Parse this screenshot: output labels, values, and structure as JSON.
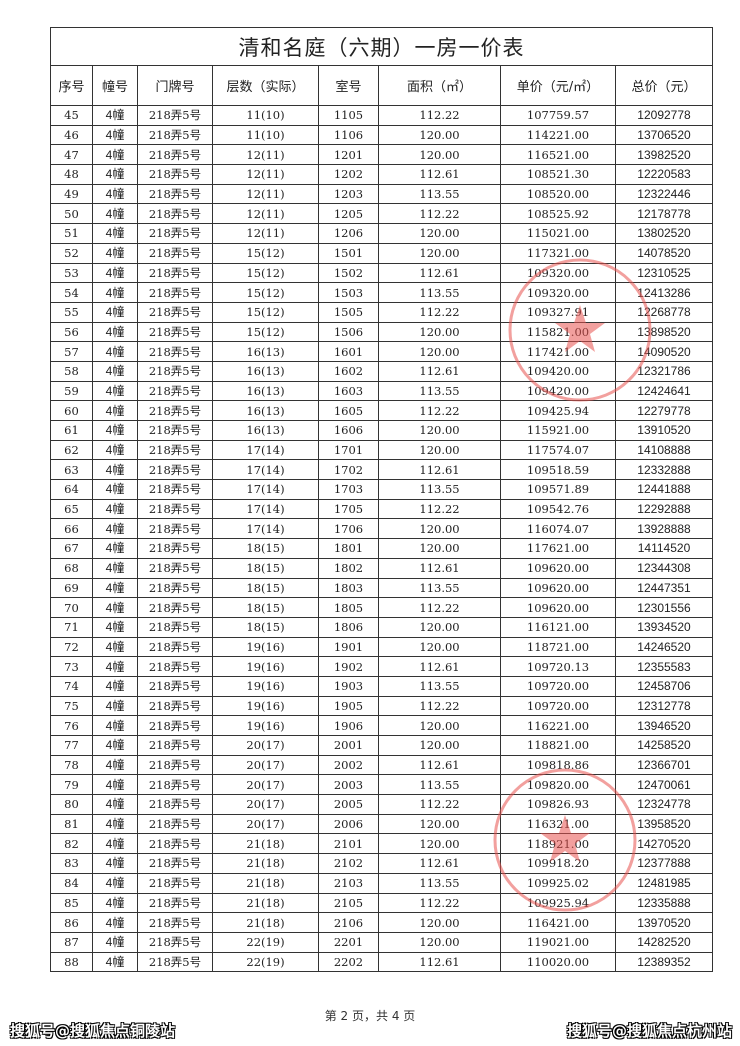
{
  "title": "清和名庭（六期）一房一价表",
  "headers": [
    "序号",
    "幢号",
    "门牌号",
    "层数（实际）",
    "室号",
    "面积（㎡）",
    "单价（元/㎡）",
    "总价（元）"
  ],
  "rows": [
    [
      "45",
      "4幢",
      "218弄5号",
      "11(10)",
      "1105",
      "112.22",
      "107759.57",
      "12092778"
    ],
    [
      "46",
      "4幢",
      "218弄5号",
      "11(10)",
      "1106",
      "120.00",
      "114221.00",
      "13706520"
    ],
    [
      "47",
      "4幢",
      "218弄5号",
      "12(11)",
      "1201",
      "120.00",
      "116521.00",
      "13982520"
    ],
    [
      "48",
      "4幢",
      "218弄5号",
      "12(11)",
      "1202",
      "112.61",
      "108521.30",
      "12220583"
    ],
    [
      "49",
      "4幢",
      "218弄5号",
      "12(11)",
      "1203",
      "113.55",
      "108520.00",
      "12322446"
    ],
    [
      "50",
      "4幢",
      "218弄5号",
      "12(11)",
      "1205",
      "112.22",
      "108525.92",
      "12178778"
    ],
    [
      "51",
      "4幢",
      "218弄5号",
      "12(11)",
      "1206",
      "120.00",
      "115021.00",
      "13802520"
    ],
    [
      "52",
      "4幢",
      "218弄5号",
      "15(12)",
      "1501",
      "120.00",
      "117321.00",
      "14078520"
    ],
    [
      "53",
      "4幢",
      "218弄5号",
      "15(12)",
      "1502",
      "112.61",
      "109320.00",
      "12310525"
    ],
    [
      "54",
      "4幢",
      "218弄5号",
      "15(12)",
      "1503",
      "113.55",
      "109320.00",
      "12413286"
    ],
    [
      "55",
      "4幢",
      "218弄5号",
      "15(12)",
      "1505",
      "112.22",
      "109327.91",
      "12268778"
    ],
    [
      "56",
      "4幢",
      "218弄5号",
      "15(12)",
      "1506",
      "120.00",
      "115821.00",
      "13898520"
    ],
    [
      "57",
      "4幢",
      "218弄5号",
      "16(13)",
      "1601",
      "120.00",
      "117421.00",
      "14090520"
    ],
    [
      "58",
      "4幢",
      "218弄5号",
      "16(13)",
      "1602",
      "112.61",
      "109420.00",
      "12321786"
    ],
    [
      "59",
      "4幢",
      "218弄5号",
      "16(13)",
      "1603",
      "113.55",
      "109420.00",
      "12424641"
    ],
    [
      "60",
      "4幢",
      "218弄5号",
      "16(13)",
      "1605",
      "112.22",
      "109425.94",
      "12279778"
    ],
    [
      "61",
      "4幢",
      "218弄5号",
      "16(13)",
      "1606",
      "120.00",
      "115921.00",
      "13910520"
    ],
    [
      "62",
      "4幢",
      "218弄5号",
      "17(14)",
      "1701",
      "120.00",
      "117574.07",
      "14108888"
    ],
    [
      "63",
      "4幢",
      "218弄5号",
      "17(14)",
      "1702",
      "112.61",
      "109518.59",
      "12332888"
    ],
    [
      "64",
      "4幢",
      "218弄5号",
      "17(14)",
      "1703",
      "113.55",
      "109571.89",
      "12441888"
    ],
    [
      "65",
      "4幢",
      "218弄5号",
      "17(14)",
      "1705",
      "112.22",
      "109542.76",
      "12292888"
    ],
    [
      "66",
      "4幢",
      "218弄5号",
      "17(14)",
      "1706",
      "120.00",
      "116074.07",
      "13928888"
    ],
    [
      "67",
      "4幢",
      "218弄5号",
      "18(15)",
      "1801",
      "120.00",
      "117621.00",
      "14114520"
    ],
    [
      "68",
      "4幢",
      "218弄5号",
      "18(15)",
      "1802",
      "112.61",
      "109620.00",
      "12344308"
    ],
    [
      "69",
      "4幢",
      "218弄5号",
      "18(15)",
      "1803",
      "113.55",
      "109620.00",
      "12447351"
    ],
    [
      "70",
      "4幢",
      "218弄5号",
      "18(15)",
      "1805",
      "112.22",
      "109620.00",
      "12301556"
    ],
    [
      "71",
      "4幢",
      "218弄5号",
      "18(15)",
      "1806",
      "120.00",
      "116121.00",
      "13934520"
    ],
    [
      "72",
      "4幢",
      "218弄5号",
      "19(16)",
      "1901",
      "120.00",
      "118721.00",
      "14246520"
    ],
    [
      "73",
      "4幢",
      "218弄5号",
      "19(16)",
      "1902",
      "112.61",
      "109720.13",
      "12355583"
    ],
    [
      "74",
      "4幢",
      "218弄5号",
      "19(16)",
      "1903",
      "113.55",
      "109720.00",
      "12458706"
    ],
    [
      "75",
      "4幢",
      "218弄5号",
      "19(16)",
      "1905",
      "112.22",
      "109720.00",
      "12312778"
    ],
    [
      "76",
      "4幢",
      "218弄5号",
      "19(16)",
      "1906",
      "120.00",
      "116221.00",
      "13946520"
    ],
    [
      "77",
      "4幢",
      "218弄5号",
      "20(17)",
      "2001",
      "120.00",
      "118821.00",
      "14258520"
    ],
    [
      "78",
      "4幢",
      "218弄5号",
      "20(17)",
      "2002",
      "112.61",
      "109818.86",
      "12366701"
    ],
    [
      "79",
      "4幢",
      "218弄5号",
      "20(17)",
      "2003",
      "113.55",
      "109820.00",
      "12470061"
    ],
    [
      "80",
      "4幢",
      "218弄5号",
      "20(17)",
      "2005",
      "112.22",
      "109826.93",
      "12324778"
    ],
    [
      "81",
      "4幢",
      "218弄5号",
      "20(17)",
      "2006",
      "120.00",
      "116321.00",
      "13958520"
    ],
    [
      "82",
      "4幢",
      "218弄5号",
      "21(18)",
      "2101",
      "120.00",
      "118921.00",
      "14270520"
    ],
    [
      "83",
      "4幢",
      "218弄5号",
      "21(18)",
      "2102",
      "112.61",
      "109918.20",
      "12377888"
    ],
    [
      "84",
      "4幢",
      "218弄5号",
      "21(18)",
      "2103",
      "113.55",
      "109925.02",
      "12481985"
    ],
    [
      "85",
      "4幢",
      "218弄5号",
      "21(18)",
      "2105",
      "112.22",
      "109925.94",
      "12335888"
    ],
    [
      "86",
      "4幢",
      "218弄5号",
      "21(18)",
      "2106",
      "120.00",
      "116421.00",
      "13970520"
    ],
    [
      "87",
      "4幢",
      "218弄5号",
      "22(19)",
      "2201",
      "120.00",
      "119021.00",
      "14282520"
    ],
    [
      "88",
      "4幢",
      "218弄5号",
      "22(19)",
      "2202",
      "112.61",
      "110020.00",
      "12389352"
    ]
  ],
  "footer": {
    "page_text": "第 2 页，共 4 页"
  },
  "watermarks": {
    "left": "搜狐号@搜狐焦点铜陵站",
    "right": "搜狐号@搜狐焦点杭州站"
  },
  "stamp": {
    "icon": "red-official-seal-star",
    "color": "#e8534f"
  }
}
